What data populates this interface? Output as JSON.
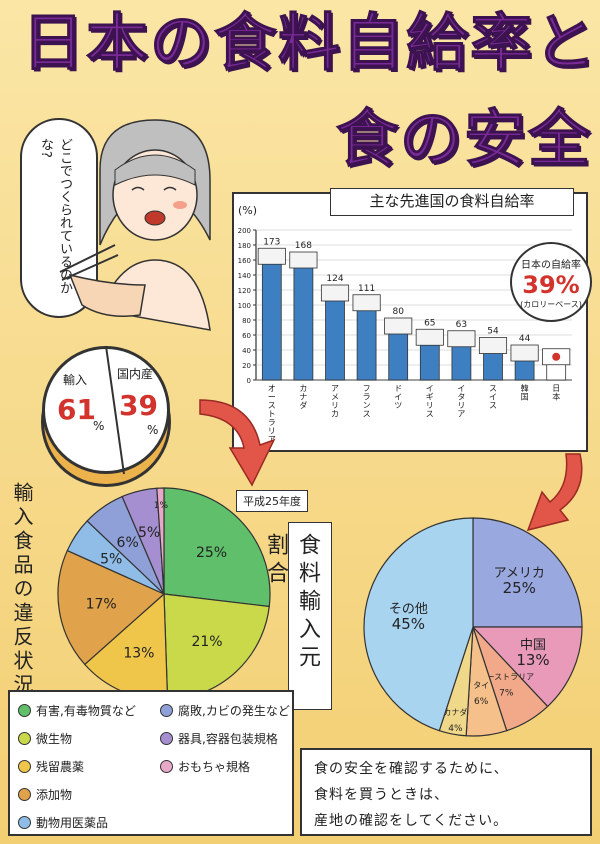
{
  "title": {
    "line1": "日本の食料自給率と",
    "line2": "食の安全"
  },
  "speech": "どこでつくられているのかな?",
  "self_sufficiency_chart": {
    "title": "主な先進国の食料自給率",
    "unit": "(%)"
  },
  "japan_callout": {
    "label": "日本の自給率",
    "value": "39%",
    "note": "(カロリーベース)"
  },
  "donut": {
    "import_label": "輸入",
    "import_value": "61",
    "domestic_label": "国内産",
    "domestic_value": "39",
    "pct": "%"
  },
  "violation_label": "輸入食品の違反状況",
  "year_badge": "平成25年度",
  "origin_label": "食料輸入元割合",
  "legend": [
    {
      "label": "有害,有毒物質など",
      "color": "#5fbf6a"
    },
    {
      "label": "微生物",
      "color": "#c9d94a"
    },
    {
      "label": "残留農薬",
      "color": "#f0c64a"
    },
    {
      "label": "添加物",
      "color": "#e0a24a"
    },
    {
      "label": "動物用医薬品",
      "color": "#8fbde8"
    },
    {
      "label": "腐敗,カビの発生など",
      "color": "#8fa0d8"
    },
    {
      "label": "器具,容器包装規格",
      "color": "#a58fd0"
    },
    {
      "label": "おもちゃ規格",
      "color": "#e8a8c8"
    }
  ],
  "message": [
    "食の安全を確認するために、",
    "食料を買うときは、",
    "産地の確認をしてください。"
  ],
  "chart_data": [
    {
      "type": "bar",
      "title": "主な先進国の食料自給率",
      "ylabel": "(%)",
      "ylim": [
        0,
        200
      ],
      "yticks": [
        0,
        20,
        40,
        60,
        80,
        100,
        120,
        140,
        160,
        180,
        200
      ],
      "categories": [
        "オーストラリア",
        "カナダ",
        "アメリカ",
        "フランス",
        "ドイツ",
        "イギリス",
        "イタリア",
        "スイス",
        "韓国",
        "日本"
      ],
      "values": [
        173,
        168,
        124,
        111,
        80,
        65,
        63,
        54,
        44,
        39
      ],
      "value_labels": [
        "173",
        "168",
        "124",
        "111",
        "80",
        "65",
        "63",
        "54",
        "44",
        ""
      ],
      "bar_color": "#3d7fc0"
    },
    {
      "type": "pie",
      "categories": [
        "有害,有毒物質など",
        "微生物",
        "残留農薬",
        "添加物",
        "動物用医薬品",
        "腐敗,カビの発生など",
        "器具,容器包装規格",
        "おもちゃ規格"
      ],
      "values": [
        25,
        21,
        13,
        17,
        5,
        6,
        5,
        1
      ],
      "labels": [
        "25%",
        "21%",
        "13%",
        "17%",
        "5%",
        "6%",
        "5%",
        "1%"
      ],
      "colors": [
        "#5fbf6a",
        "#c9d94a",
        "#f0c64a",
        "#e0a24a",
        "#8fbde8",
        "#8fa0d8",
        "#a58fd0",
        "#e8a8c8"
      ]
    },
    {
      "type": "pie",
      "categories": [
        "アメリカ",
        "中国",
        "オーストラリア",
        "タイ",
        "カナダ",
        "その他"
      ],
      "values": [
        25,
        13,
        7,
        6,
        4,
        45
      ],
      "labels": [
        "アメリカ 25%",
        "中国 13%",
        "オーストラリア 7%",
        "タイ 6%",
        "カナダ 4%",
        "その他 45%"
      ],
      "colors": [
        "#9aa8e0",
        "#e89ab8",
        "#f2a98a",
        "#f5c08a",
        "#f0d88a",
        "#a9d4f0"
      ]
    }
  ]
}
